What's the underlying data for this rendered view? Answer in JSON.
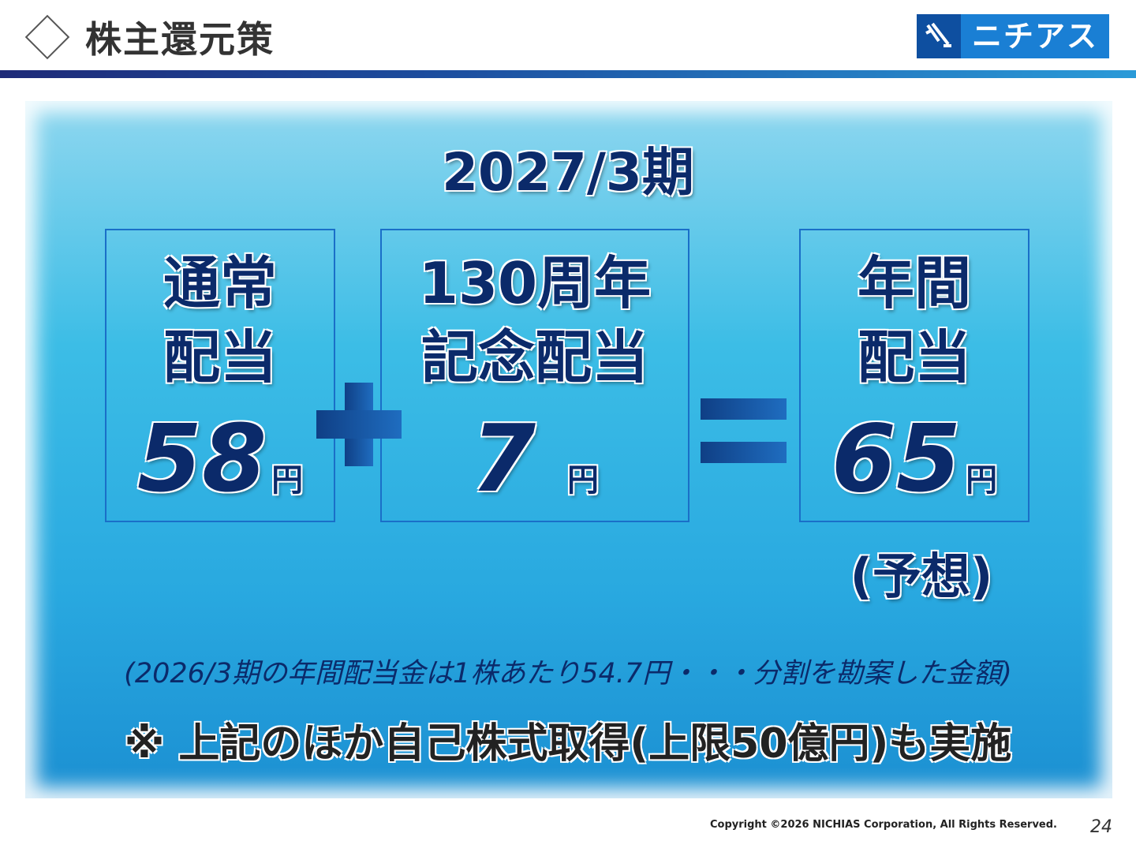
{
  "header": {
    "title": "株主還元策",
    "logo": "ニチアス"
  },
  "period": "2027/3期",
  "boxes": [
    {
      "lines": [
        "通常",
        "配当"
      ],
      "amount": 58,
      "unit": "円"
    },
    {
      "lines": [
        "130周年",
        "記念配当"
      ],
      "amount": 7,
      "unit": "円"
    },
    {
      "lines": [
        "年間",
        "配当"
      ],
      "amount": 65,
      "unit": "円"
    }
  ],
  "forecast": "(予想)",
  "note": "(2026/3期の年間配当金は1株あたり54.7円・・・分割を勘案した金額)",
  "buyback": "※ 上記のほか自己株式取得(上限50億円)も実施",
  "footer": {
    "copyright": "Copyright ©2026 NICHIAS Corporation, All Rights Reserved.",
    "page": "24"
  }
}
